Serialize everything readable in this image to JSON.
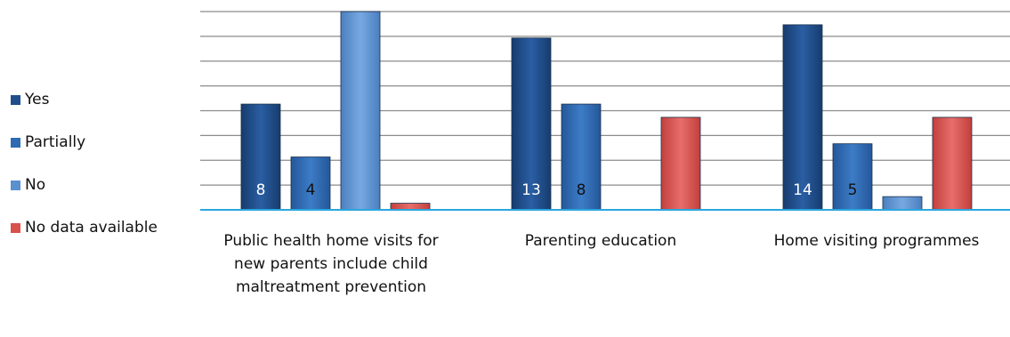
{
  "chart_data": {
    "type": "bar",
    "title": "",
    "xlabel": "",
    "ylabel": "",
    "ylim": [
      0,
      15
    ],
    "grid": true,
    "legend_position": "left",
    "categories": [
      "Public health home visits for new parents include child maltreatment prevention",
      "Parenting education",
      "Home visiting programmes"
    ],
    "series": [
      {
        "name": "Yes",
        "values": [
          8,
          13,
          14
        ],
        "labels": [
          "8",
          "13",
          "14"
        ],
        "color": "#1f4e8c"
      },
      {
        "name": "Partially",
        "values": [
          4,
          8,
          5
        ],
        "labels": [
          "4",
          "8",
          "5"
        ],
        "color": "#2e6ab1"
      },
      {
        "name": "No",
        "values": [
          15,
          0,
          1
        ],
        "labels": [
          "",
          "",
          ""
        ],
        "color": "#5a8fd0"
      },
      {
        "name": "No data available",
        "values": [
          0.5,
          7,
          7
        ],
        "labels": [
          "",
          "",
          ""
        ],
        "color": "#d9504d"
      }
    ]
  }
}
